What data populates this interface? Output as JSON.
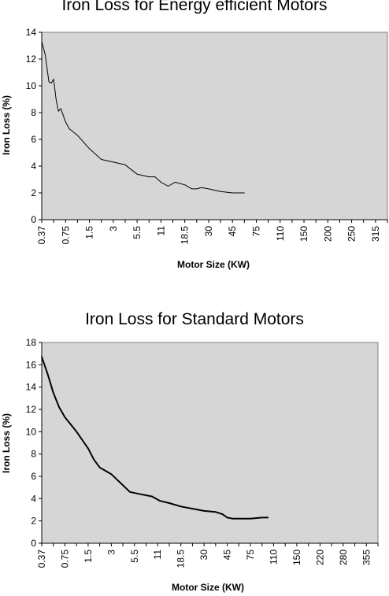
{
  "chart_data": [
    {
      "type": "line",
      "title": "Iron Loss for Energy efficient Motors",
      "xlabel": "Motor Size (KW)",
      "ylabel": "Iron Loss (%)",
      "ylim": [
        0,
        14
      ],
      "yticks": [
        0,
        2,
        4,
        6,
        8,
        10,
        12,
        14
      ],
      "categories": [
        "0.37",
        "0.75",
        "1.5",
        "3",
        "5.5",
        "11",
        "18.5",
        "30",
        "45",
        "75",
        "110",
        "150",
        "200",
        "250",
        "315"
      ],
      "series": [
        {
          "values": [
            [
              0,
              13.3
            ],
            [
              0.3,
              12.3
            ],
            [
              0.6,
              10.3
            ],
            [
              0.8,
              10.2
            ],
            [
              1.0,
              10.5
            ],
            [
              1.2,
              9.0
            ],
            [
              1.4,
              8.1
            ],
            [
              1.6,
              8.3
            ],
            [
              2.0,
              7.3
            ],
            [
              2.3,
              6.8
            ],
            [
              3.0,
              6.3
            ],
            [
              4.0,
              5.3
            ],
            [
              5.0,
              4.5
            ],
            [
              6.0,
              4.3
            ],
            [
              7.0,
              4.1
            ],
            [
              8.0,
              3.4
            ],
            [
              9.0,
              3.2
            ],
            [
              9.5,
              3.2
            ],
            [
              10.0,
              2.8
            ],
            [
              10.6,
              2.5
            ],
            [
              11.2,
              2.8
            ],
            [
              12.0,
              2.6
            ],
            [
              12.6,
              2.3
            ],
            [
              13.0,
              2.3
            ],
            [
              13.4,
              2.4
            ],
            [
              14.0,
              2.3
            ],
            [
              15.0,
              2.1
            ],
            [
              16.0,
              2.0
            ],
            [
              16.5,
              2.0
            ],
            [
              17.0,
              2.0
            ]
          ]
        }
      ],
      "grid": false,
      "plot_background": "#d6d6d6",
      "line_color": "#000000"
    },
    {
      "type": "line",
      "title": "Iron Loss for Standard Motors",
      "xlabel": "Motor Size (KW)",
      "ylabel": "Iron Loss (%)",
      "ylim": [
        0,
        18
      ],
      "yticks": [
        0,
        2,
        4,
        6,
        8,
        10,
        12,
        14,
        16,
        18
      ],
      "categories": [
        "0.37",
        "0.75",
        "1.5",
        "3",
        "5.5",
        "11",
        "18.5",
        "30",
        "45",
        "75",
        "110",
        "150",
        "220",
        "280",
        "355"
      ],
      "series": [
        {
          "values": [
            [
              0,
              16.7
            ],
            [
              0.5,
              15.2
            ],
            [
              1.0,
              13.5
            ],
            [
              1.5,
              12.2
            ],
            [
              2.0,
              11.3
            ],
            [
              3.0,
              10.0
            ],
            [
              4.0,
              8.5
            ],
            [
              4.5,
              7.5
            ],
            [
              5.0,
              6.8
            ],
            [
              6.0,
              6.2
            ],
            [
              7.0,
              5.2
            ],
            [
              7.6,
              4.6
            ],
            [
              8.5,
              4.4
            ],
            [
              9.5,
              4.2
            ],
            [
              10.2,
              3.8
            ],
            [
              11.0,
              3.6
            ],
            [
              12.0,
              3.3
            ],
            [
              13.0,
              3.1
            ],
            [
              14.0,
              2.9
            ],
            [
              15.0,
              2.8
            ],
            [
              15.6,
              2.6
            ],
            [
              16.0,
              2.3
            ],
            [
              16.5,
              2.2
            ],
            [
              17.0,
              2.2
            ],
            [
              18.0,
              2.2
            ],
            [
              19.0,
              2.3
            ],
            [
              19.5,
              2.3
            ]
          ]
        }
      ],
      "grid": false,
      "plot_background": "#d6d6d6",
      "line_color": "#000000"
    }
  ]
}
